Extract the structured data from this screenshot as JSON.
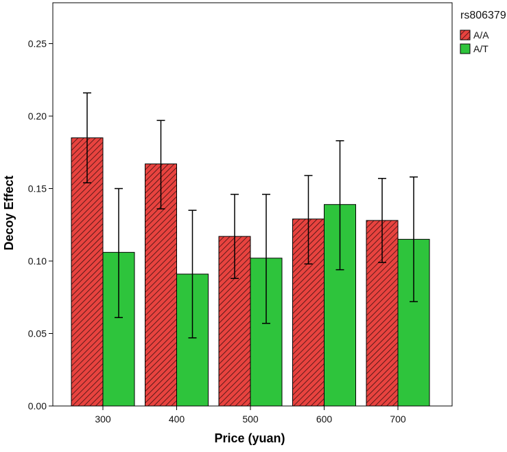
{
  "chart_data": {
    "type": "bar",
    "title": "",
    "xlabel": "Price (yuan)",
    "ylabel": "Decoy Effect",
    "categories": [
      "300",
      "400",
      "500",
      "600",
      "700"
    ],
    "ylim": [
      0,
      0.275
    ],
    "yticks": [
      "0.00",
      "0.05",
      "0.10",
      "0.15",
      "0.20",
      "0.25"
    ],
    "grid": false,
    "legend": {
      "title": "rs806379",
      "position": "top-right"
    },
    "series": [
      {
        "name": "A/A",
        "color": "#e8433f",
        "pattern": "diagonal-hatch",
        "values": [
          0.185,
          0.167,
          0.117,
          0.129,
          0.128
        ],
        "error_low": [
          0.154,
          0.136,
          0.088,
          0.098,
          0.099
        ],
        "error_high": [
          0.216,
          0.197,
          0.146,
          0.159,
          0.157
        ]
      },
      {
        "name": "A/T",
        "color": "#2ec43c",
        "pattern": "solid",
        "values": [
          0.106,
          0.091,
          0.102,
          0.139,
          0.115
        ],
        "error_low": [
          0.061,
          0.047,
          0.057,
          0.094,
          0.072
        ],
        "error_high": [
          0.15,
          0.135,
          0.146,
          0.183,
          0.158
        ]
      }
    ]
  }
}
